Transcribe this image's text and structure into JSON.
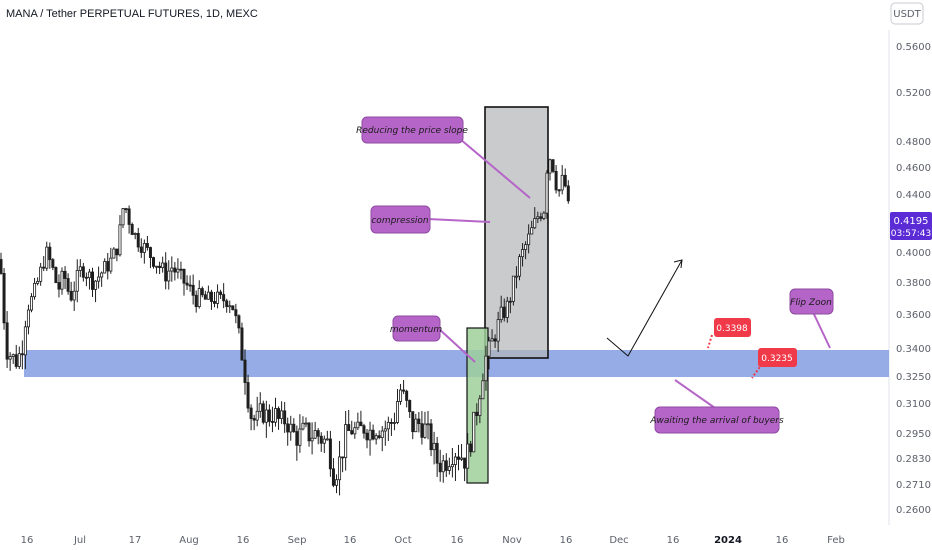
{
  "header": {
    "title": "MANA / Tether PERPETUAL FUTURES, 1D, MEXC",
    "currency_button": "USDT"
  },
  "price_marker": {
    "price": "0.4195",
    "countdown": "03:57:43",
    "color": "#5b2bd6"
  },
  "colors": {
    "up": "#ffffff",
    "down": "#1e1e1e",
    "zone": "#8fa8e6",
    "compression_box": "#b3b5b8",
    "momentum_box": "#9fcf9a",
    "callout": "#b565c7",
    "level_label": "#f03a4a"
  },
  "annotations": {
    "reducing_slope": "Reducing the price slope",
    "compression": "compression",
    "momentum": "momentum",
    "flip_zone": "Flip Zoon",
    "awaiting": "Awaiting the arrival of buyers",
    "level_high": "0.3398",
    "level_low": "0.3235"
  },
  "chart_data": {
    "type": "candlestick",
    "title": "MANA / Tether PERPETUAL FUTURES, 1D, MEXC",
    "y_ticks": [
      "0.5600",
      "0.5200",
      "0.4800",
      "0.4600",
      "0.4400",
      "0.4195",
      "0.4000",
      "0.3800",
      "0.3600",
      "0.3400",
      "0.3250",
      "0.3100",
      "0.2950",
      "0.2830",
      "0.2710",
      "0.2600"
    ],
    "x_ticks": [
      "16",
      "Jul",
      "17",
      "Aug",
      "16",
      "Sep",
      "16",
      "Oct",
      "16",
      "Nov",
      "16",
      "Dec",
      "16",
      "2024",
      "16",
      "Feb"
    ],
    "flip_zone": [
      0.3235,
      0.3398
    ],
    "last_price": 0.4195,
    "close_path": [
      [
        0,
        0.395
      ],
      [
        6,
        0.34
      ],
      [
        12,
        0.335
      ],
      [
        17,
        0.333
      ],
      [
        22,
        0.34
      ],
      [
        27,
        0.365
      ],
      [
        33,
        0.37
      ],
      [
        40,
        0.385
      ],
      [
        46,
        0.4
      ],
      [
        52,
        0.39
      ],
      [
        58,
        0.375
      ],
      [
        64,
        0.385
      ],
      [
        70,
        0.37
      ],
      [
        76,
        0.38
      ],
      [
        82,
        0.39
      ],
      [
        88,
        0.385
      ],
      [
        94,
        0.38
      ],
      [
        100,
        0.385
      ],
      [
        106,
        0.39
      ],
      [
        112,
        0.395
      ],
      [
        118,
        0.405
      ],
      [
        124,
        0.435
      ],
      [
        130,
        0.42
      ],
      [
        136,
        0.41
      ],
      [
        142,
        0.405
      ],
      [
        148,
        0.4
      ],
      [
        154,
        0.395
      ],
      [
        160,
        0.39
      ],
      [
        166,
        0.385
      ],
      [
        172,
        0.39
      ],
      [
        178,
        0.385
      ],
      [
        184,
        0.38
      ],
      [
        190,
        0.375
      ],
      [
        196,
        0.37
      ],
      [
        202,
        0.37
      ],
      [
        208,
        0.368
      ],
      [
        214,
        0.37
      ],
      [
        220,
        0.368
      ],
      [
        226,
        0.37
      ],
      [
        232,
        0.367
      ],
      [
        238,
        0.35
      ],
      [
        244,
        0.33
      ],
      [
        250,
        0.305
      ],
      [
        256,
        0.3
      ],
      [
        262,
        0.306
      ],
      [
        268,
        0.303
      ],
      [
        274,
        0.305
      ],
      [
        280,
        0.3
      ],
      [
        286,
        0.302
      ],
      [
        292,
        0.295
      ],
      [
        298,
        0.293
      ],
      [
        304,
        0.296
      ],
      [
        310,
        0.294
      ],
      [
        316,
        0.295
      ],
      [
        322,
        0.292
      ],
      [
        328,
        0.29
      ],
      [
        334,
        0.275
      ],
      [
        340,
        0.282
      ],
      [
        346,
        0.294
      ],
      [
        352,
        0.297
      ],
      [
        358,
        0.295
      ],
      [
        364,
        0.298
      ],
      [
        370,
        0.296
      ],
      [
        376,
        0.298
      ],
      [
        382,
        0.297
      ],
      [
        388,
        0.298
      ],
      [
        394,
        0.302
      ],
      [
        400,
        0.318
      ],
      [
        406,
        0.31
      ],
      [
        412,
        0.298
      ],
      [
        418,
        0.3
      ],
      [
        424,
        0.298
      ],
      [
        430,
        0.292
      ],
      [
        436,
        0.282
      ],
      [
        442,
        0.28
      ],
      [
        448,
        0.283
      ],
      [
        454,
        0.287
      ],
      [
        460,
        0.285
      ],
      [
        466,
        0.282
      ],
      [
        470,
        0.29
      ],
      [
        474,
        0.3
      ],
      [
        478,
        0.31
      ],
      [
        482,
        0.325
      ],
      [
        486,
        0.335
      ],
      [
        490,
        0.34
      ],
      [
        496,
        0.35
      ],
      [
        502,
        0.36
      ],
      [
        508,
        0.365
      ],
      [
        514,
        0.38
      ],
      [
        520,
        0.395
      ],
      [
        526,
        0.405
      ],
      [
        532,
        0.415
      ],
      [
        538,
        0.425
      ],
      [
        544,
        0.43
      ],
      [
        548,
        0.47
      ],
      [
        552,
        0.465
      ],
      [
        558,
        0.44
      ],
      [
        562,
        0.45
      ],
      [
        566,
        0.445
      ],
      [
        570,
        0.4195
      ]
    ]
  }
}
